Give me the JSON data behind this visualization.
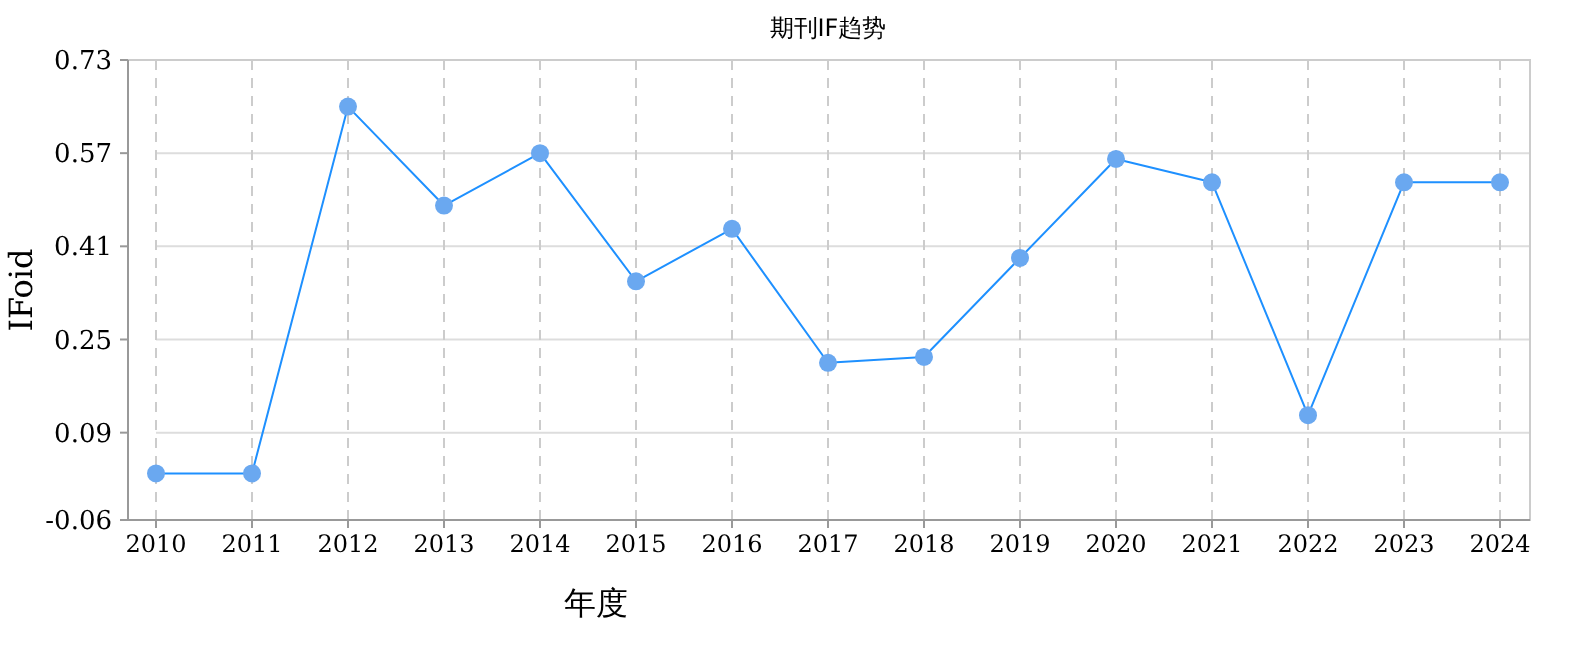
{
  "chart_data": {
    "type": "line",
    "title": "期刊IF趋势",
    "xlabel": "年度",
    "ylabel": "IFoid",
    "categories": [
      "2010",
      "2011",
      "2012",
      "2013",
      "2014",
      "2015",
      "2016",
      "2017",
      "2018",
      "2019",
      "2020",
      "2021",
      "2022",
      "2023",
      "2024"
    ],
    "series": [
      {
        "color": "#1e90ff",
        "values": [
          0.02,
          0.02,
          0.65,
          0.48,
          0.57,
          0.35,
          0.44,
          0.21,
          0.22,
          0.39,
          0.56,
          0.52,
          0.12,
          0.52,
          0.52
        ]
      }
    ],
    "ylim": [
      -0.06,
      0.73
    ],
    "yticks": [
      -0.06,
      0.09,
      0.25,
      0.41,
      0.57,
      0.73
    ],
    "grid": true,
    "marker": "circle",
    "line_style": "solid"
  }
}
